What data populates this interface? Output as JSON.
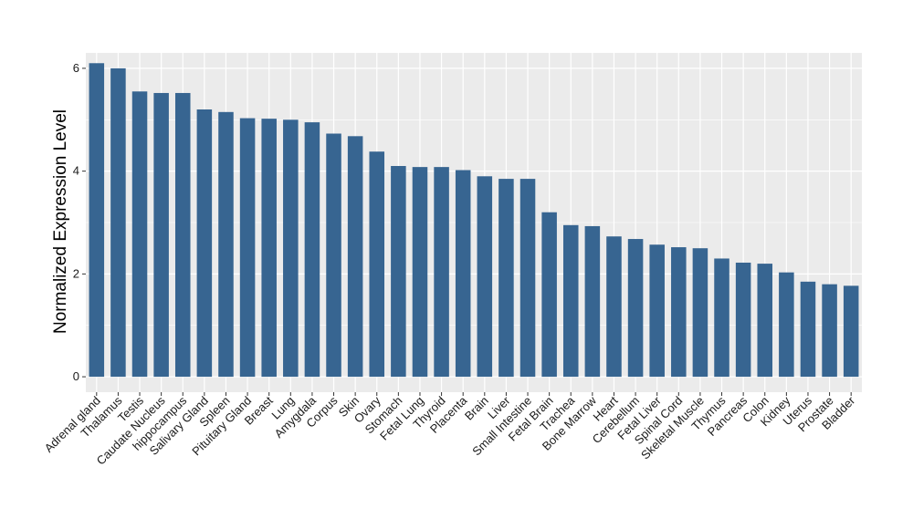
{
  "chart_data": {
    "type": "bar",
    "title": "",
    "xlabel": "",
    "ylabel": "Normalized Expression Level",
    "ylim": [
      -0.3,
      6.3
    ],
    "yticks": [
      0,
      2,
      4,
      6
    ],
    "grid": true,
    "bar_color": "#376591",
    "panel_color": "#ebebeb",
    "gridline_color": "#ffffff",
    "categories": [
      "Adrenal gland",
      "Thalamus",
      "Testis",
      "Caudate Nucleus",
      "hippocampus",
      "Salivary Gland",
      "Spleen",
      "Pituitary Gland",
      "Breast",
      "Lung",
      "Amygdala",
      "Corpus",
      "Skin",
      "Ovary",
      "Stomach",
      "Fetal Lung",
      "Thyroid",
      "Placenta",
      "Brain",
      "Liver",
      "Small Intestine",
      "Fetal Brain",
      "Trachea",
      "Bone Marrow",
      "Heart",
      "Cerebellum",
      "Fetal Liver",
      "Spinal Cord",
      "Skeletal Muscle",
      "Thymus",
      "Pancreas",
      "Colon",
      "Kidney",
      "Uterus",
      "Prostate",
      "Bladder"
    ],
    "values": [
      6.1,
      6.0,
      5.55,
      5.52,
      5.52,
      5.2,
      5.15,
      5.03,
      5.02,
      5.0,
      4.95,
      4.73,
      4.68,
      4.38,
      4.1,
      4.08,
      4.08,
      4.02,
      3.9,
      3.85,
      3.85,
      3.2,
      2.95,
      2.93,
      2.73,
      2.68,
      2.57,
      2.52,
      2.5,
      2.3,
      2.22,
      2.2,
      2.03,
      1.85,
      1.8,
      1.77
    ]
  }
}
